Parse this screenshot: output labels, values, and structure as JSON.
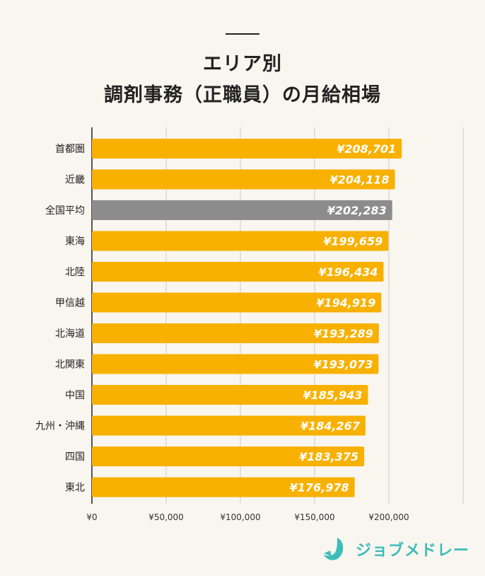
{
  "title_line1": "エリア別",
  "title_line2": "調剤事務（正職員）の月給相場",
  "logo_text": "ジョブメドレー",
  "colors": {
    "bar": "#f8b100",
    "highlight": "#8c8c8c",
    "grid": "#cfcac2",
    "axis": "#555555",
    "logo": "#3dbdb8"
  },
  "chart_data": {
    "type": "bar",
    "orientation": "horizontal",
    "categories": [
      "首都圏",
      "近畿",
      "全国平均",
      "東海",
      "北陸",
      "甲信越",
      "北海道",
      "北関東",
      "中国",
      "九州・沖縄",
      "四国",
      "東北"
    ],
    "values": [
      208701,
      204118,
      202283,
      199659,
      196434,
      194919,
      193289,
      193073,
      185943,
      184267,
      183375,
      176978
    ],
    "data_labels": [
      "¥208,701",
      "¥204,118",
      "¥202,283",
      "¥199,659",
      "¥196,434",
      "¥194,919",
      "¥193,289",
      "¥193,073",
      "¥185,943",
      "¥184,267",
      "¥183,375",
      "¥176,978"
    ],
    "highlight_category": "全国平均",
    "xlim": [
      0,
      250000
    ],
    "x_ticks": [
      0,
      50000,
      100000,
      150000,
      200000,
      250000
    ],
    "x_tick_labels": [
      "¥0",
      "¥50,000",
      "¥100,000",
      "¥150,000",
      "¥200,000",
      ""
    ],
    "grid": true
  }
}
